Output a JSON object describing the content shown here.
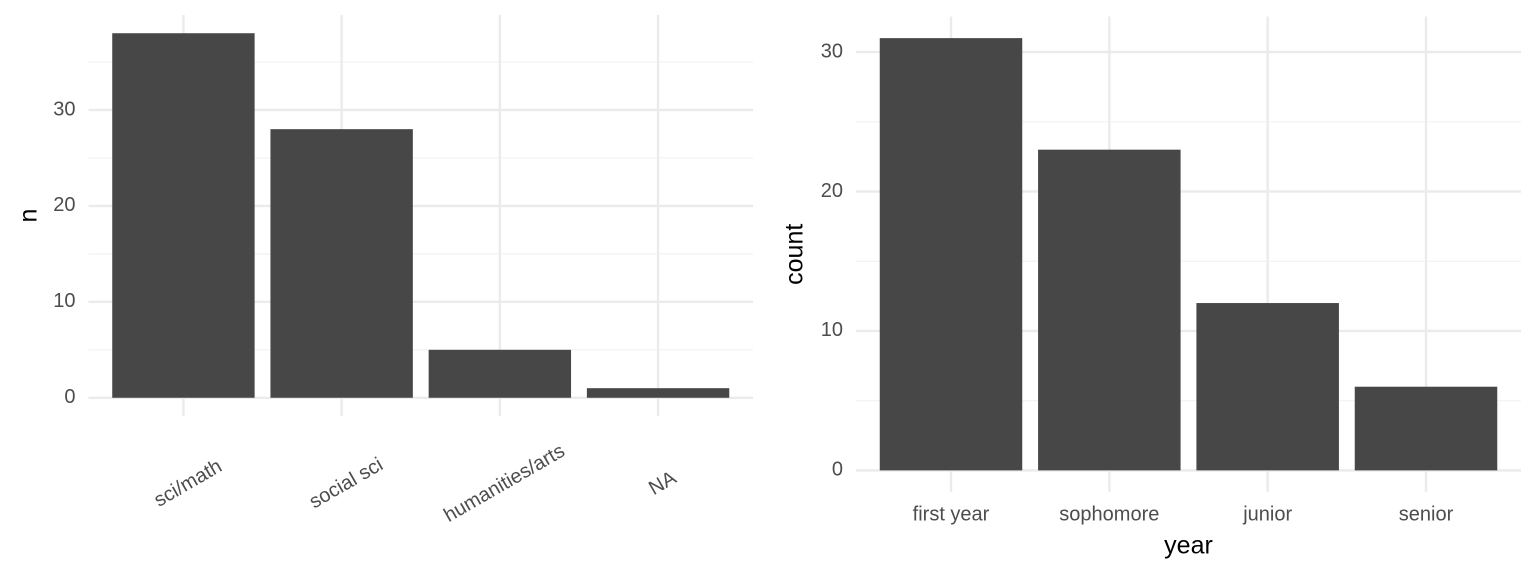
{
  "chart_data": [
    {
      "type": "bar",
      "categories": [
        "sci/math",
        "social sci",
        "humanities/arts",
        "NA"
      ],
      "values": [
        38,
        28,
        5,
        1
      ],
      "color": "#474747",
      "ylabel": "n",
      "ylim": [
        -1.9,
        39.9
      ],
      "yticks": [
        0,
        10,
        20,
        30
      ],
      "grid": true,
      "x_label_rotation": -30
    },
    {
      "type": "bar",
      "categories": [
        "first year",
        "sophomore",
        "junior",
        "senior"
      ],
      "values": [
        31,
        23,
        12,
        6
      ],
      "color": "#474747",
      "xlabel": "year",
      "ylabel": "count",
      "ylim": [
        -1.55,
        32.55
      ],
      "yticks": [
        0,
        10,
        20,
        30
      ],
      "grid": true,
      "x_label_rotation": 0
    }
  ]
}
